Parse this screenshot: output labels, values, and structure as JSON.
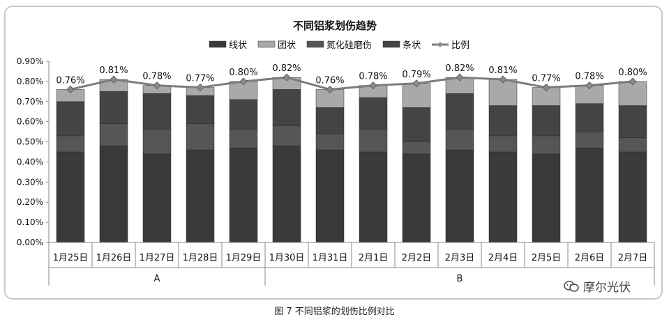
{
  "caption": "图 7 不同铝浆的划伤比例对比",
  "watermark": "摩尔光伏",
  "colors": {
    "bottom": "#3a3a3a",
    "mid1": "#565656",
    "mid2": "#444444",
    "top": "#a9a9a9",
    "line": "#7c7c7c",
    "marker": "#8a8a8a",
    "grid": "#d0d0d0"
  },
  "chart_data": {
    "type": "bar",
    "stacked": true,
    "title": "不同铝浆划伤趋势",
    "legend": [
      "线状",
      "团状",
      "氮化硅磨伤",
      "条状",
      "比例"
    ],
    "legend_position": "top",
    "categories": [
      "1月25日",
      "1月26日",
      "1月27日",
      "1月28日",
      "1月29日",
      "1月30日",
      "1月31日",
      "2月1日",
      "2月2日",
      "2月3日",
      "2月4日",
      "2月5日",
      "2月6日",
      "2月7日"
    ],
    "groups": [
      {
        "label": "A",
        "span": [
          0,
          4
        ]
      },
      {
        "label": "B",
        "span": [
          5,
          13
        ]
      }
    ],
    "ylim": [
      0,
      0.9
    ],
    "yticks": [
      "0.00%",
      "0.10%",
      "0.20%",
      "0.30%",
      "0.40%",
      "0.50%",
      "0.60%",
      "0.70%",
      "0.80%",
      "0.90%"
    ],
    "grid": false,
    "segments": [
      {
        "values": [
          0.45,
          0.48,
          0.44,
          0.46,
          0.47,
          0.48,
          0.46,
          0.45,
          0.44,
          0.46,
          0.45,
          0.44,
          0.47,
          0.45
        ]
      },
      {
        "values": [
          0.08,
          0.11,
          0.12,
          0.13,
          0.09,
          0.1,
          0.08,
          0.11,
          0.06,
          0.1,
          0.08,
          0.09,
          0.08,
          0.07
        ]
      },
      {
        "values": [
          0.17,
          0.16,
          0.18,
          0.14,
          0.15,
          0.18,
          0.13,
          0.16,
          0.17,
          0.18,
          0.15,
          0.15,
          0.14,
          0.16
        ]
      },
      {
        "values": [
          0.06,
          0.06,
          0.04,
          0.04,
          0.09,
          0.06,
          0.09,
          0.06,
          0.12,
          0.08,
          0.13,
          0.09,
          0.09,
          0.12
        ]
      }
    ],
    "line": {
      "values": [
        0.76,
        0.81,
        0.78,
        0.77,
        0.8,
        0.82,
        0.76,
        0.78,
        0.79,
        0.82,
        0.81,
        0.77,
        0.78,
        0.8
      ],
      "labels": [
        "0.76%",
        "0.81%",
        "0.78%",
        "0.77%",
        "0.80%",
        "0.82%",
        "0.76%",
        "0.78%",
        "0.79%",
        "0.82%",
        "0.81%",
        "0.77%",
        "0.78%",
        "0.80%"
      ]
    }
  }
}
